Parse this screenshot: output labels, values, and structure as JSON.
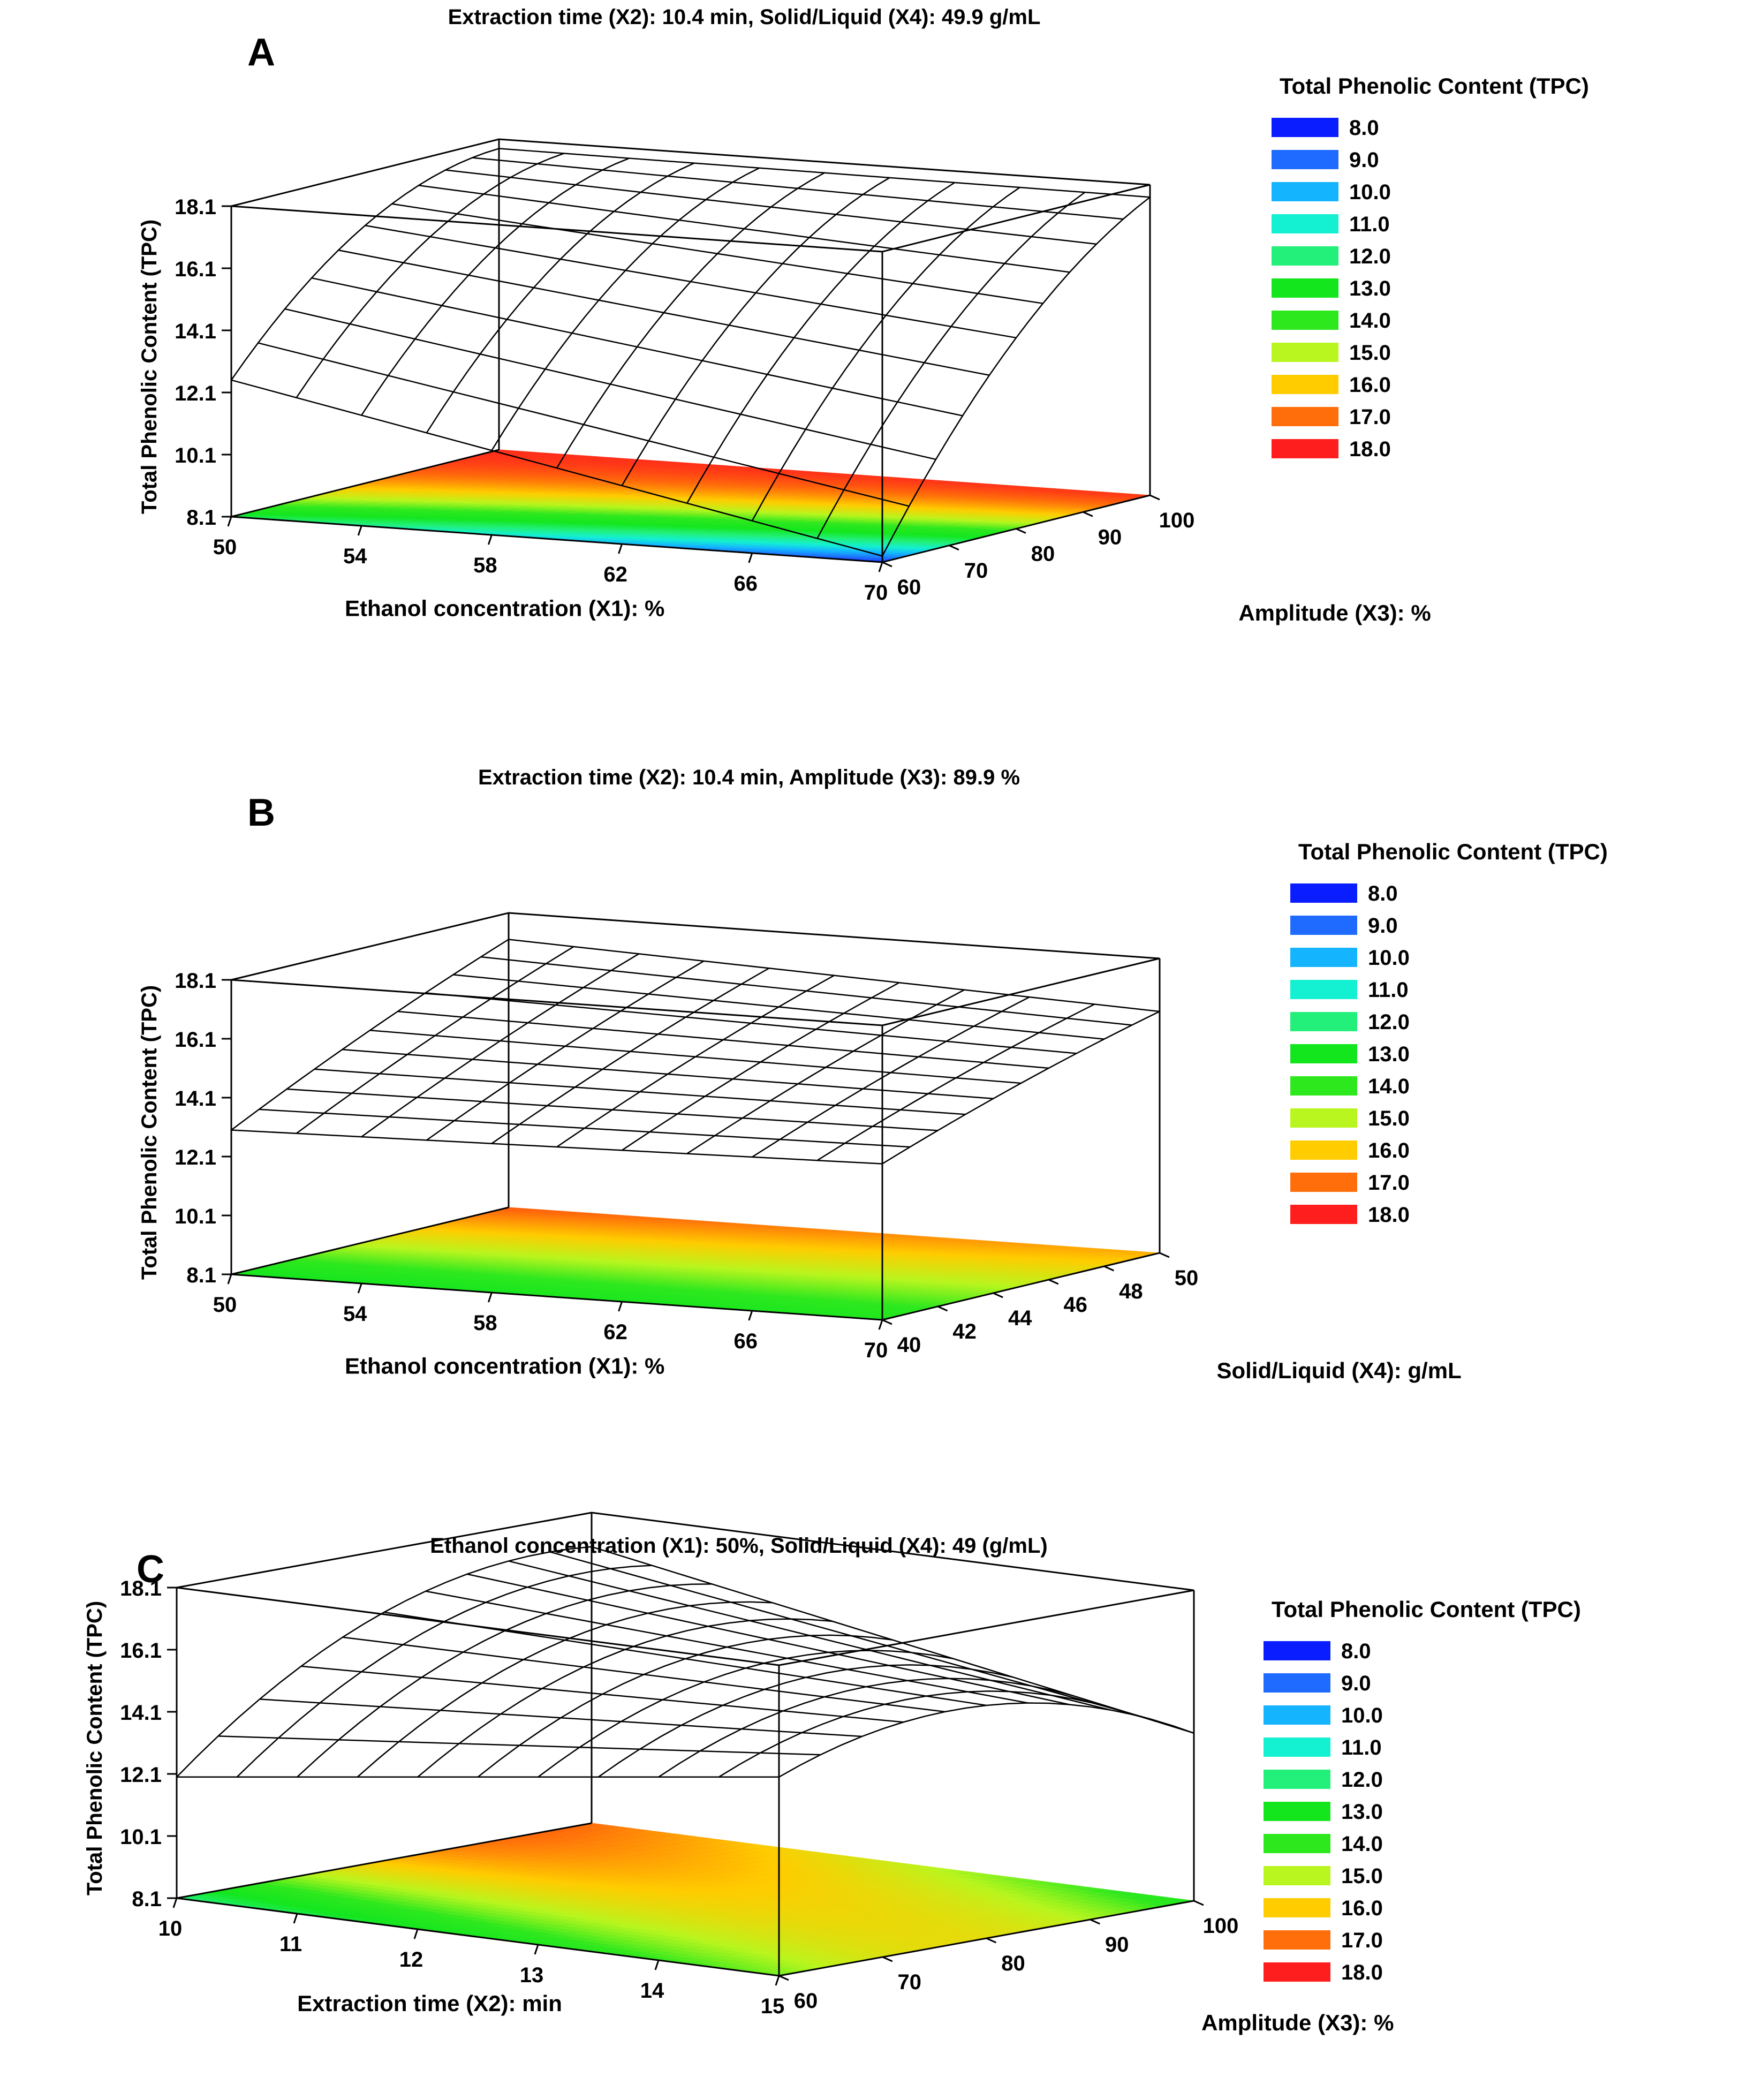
{
  "chart_data": [
    {
      "panel_label": "A",
      "type": "surface3d",
      "title": "Extraction time (X2): 10.4 min, Solid/Liquid (X4): 49.9 g/mL",
      "xlabel": "Ethanol concentration (X1): %",
      "ylabel": "Amplitude (X3): %",
      "zlabel": "Total Phenolic Content (TPC)",
      "x_ticks": [
        "50",
        "54",
        "58",
        "62",
        "66",
        "70"
      ],
      "y_ticks": [
        "60",
        "70",
        "80",
        "90",
        "100"
      ],
      "z_ticks": [
        "8.1",
        "10.1",
        "12.1",
        "14.1",
        "16.1",
        "18.1"
      ],
      "xlim": [
        50,
        70
      ],
      "ylim": [
        60,
        100
      ],
      "zlim": [
        8.1,
        18.1
      ],
      "corners_tpc": {
        "x_min_y_min": 12.5,
        "x_max_y_min": 8.3,
        "x_min_y_max": 17.8,
        "x_max_y_max": 17.7
      },
      "surface_curvature": 2.5,
      "legend": {
        "title": "Total Phenolic Content (TPC)",
        "levels": [
          "8.0",
          "9.0",
          "10.0",
          "11.0",
          "12.0",
          "13.0",
          "14.0",
          "15.0",
          "16.0",
          "17.0",
          "18.0"
        ]
      }
    },
    {
      "panel_label": "B",
      "type": "surface3d",
      "title": "Extraction time (X2): 10.4 min, Amplitude (X3): 89.9 %",
      "xlabel": "Ethanol concentration (X1): %",
      "ylabel": "Solid/Liquid (X4): g/mL",
      "zlabel": "Total Phenolic Content (TPC)",
      "x_ticks": [
        "50",
        "54",
        "58",
        "62",
        "66",
        "70"
      ],
      "y_ticks": [
        "40",
        "42",
        "44",
        "46",
        "48",
        "50"
      ],
      "z_ticks": [
        "8.1",
        "10.1",
        "12.1",
        "14.1",
        "16.1",
        "18.1"
      ],
      "xlim": [
        50,
        70
      ],
      "ylim": [
        40,
        50
      ],
      "zlim": [
        8.1,
        18.1
      ],
      "corners_tpc": {
        "x_min_y_min": 13.0,
        "x_max_y_min": 13.4,
        "x_min_y_max": 17.2,
        "x_max_y_max": 16.3
      },
      "surface_curvature": 0.3,
      "legend": {
        "title": "Total Phenolic Content (TPC)",
        "levels": [
          "8.0",
          "9.0",
          "10.0",
          "11.0",
          "12.0",
          "13.0",
          "14.0",
          "15.0",
          "16.0",
          "17.0",
          "18.0"
        ]
      }
    },
    {
      "panel_label": "C",
      "type": "surface3d",
      "title": "Ethanol concentration (X1): 50%, Solid/Liquid (X4): 49 (g/mL)",
      "xlabel": "Extraction time (X2): min",
      "ylabel": "Amplitude (X3): %",
      "zlabel": "Total Phenolic Content (TPC)",
      "x_ticks": [
        "10",
        "11",
        "12",
        "13",
        "14",
        "15"
      ],
      "y_ticks": [
        "60",
        "70",
        "80",
        "90",
        "100"
      ],
      "z_ticks": [
        "8.1",
        "10.1",
        "12.1",
        "14.1",
        "16.1",
        "18.1"
      ],
      "xlim": [
        10,
        15
      ],
      "ylim": [
        60,
        100
      ],
      "zlim": [
        8.1,
        18.1
      ],
      "corners_tpc": {
        "x_min_y_min": 12.0,
        "x_max_y_min": 14.5,
        "x_min_y_max": 17.0,
        "x_max_y_max": 13.5
      },
      "surface_curvature": 3.2,
      "legend": {
        "title": "Total Phenolic Content (TPC)",
        "levels": [
          "8.0",
          "9.0",
          "10.0",
          "11.0",
          "12.0",
          "13.0",
          "14.0",
          "15.0",
          "16.0",
          "17.0",
          "18.0"
        ]
      }
    }
  ],
  "legend_colors": [
    "#0a1dff",
    "#1f6bff",
    "#14b4ff",
    "#14f0d2",
    "#22f07a",
    "#14e61e",
    "#2ee81e",
    "#b9f51e",
    "#ffcc00",
    "#ff6e0a",
    "#ff1e1e"
  ]
}
